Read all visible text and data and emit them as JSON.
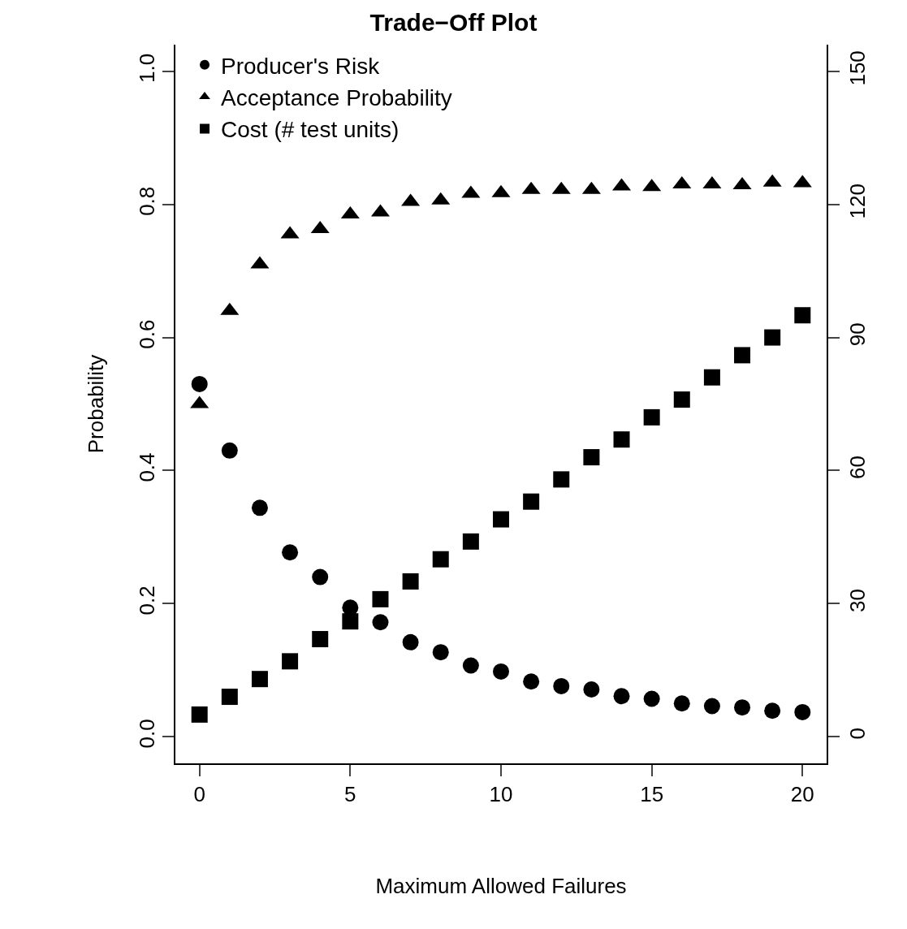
{
  "chart_data": {
    "type": "scatter",
    "title": "Trade−Off Plot",
    "xlabel": "Maximum Allowed Failures",
    "ylabel": "Probability",
    "x": [
      0,
      1,
      2,
      3,
      4,
      5,
      6,
      7,
      8,
      9,
      10,
      11,
      12,
      13,
      14,
      15,
      16,
      17,
      18,
      19,
      20
    ],
    "series": [
      {
        "name": "Producer's Risk",
        "color": "#000000",
        "marker": "circle",
        "values": [
          0.53,
          0.43,
          0.344,
          0.277,
          0.24,
          0.194,
          0.172,
          0.142,
          0.127,
          0.107,
          0.098,
          0.083,
          0.076,
          0.071,
          0.061,
          0.057,
          0.05,
          0.046,
          0.044,
          0.039,
          0.037
        ]
      },
      {
        "name": "Acceptance Probability",
        "color": "#000000",
        "marker": "triangle",
        "values": [
          0.5,
          0.64,
          0.71,
          0.755,
          0.763,
          0.785,
          0.788,
          0.804,
          0.806,
          0.816,
          0.817,
          0.822,
          0.822,
          0.822,
          0.827,
          0.826,
          0.83,
          0.83,
          0.829,
          0.833,
          0.832
        ]
      },
      {
        "name": "Cost (# test units)",
        "color": "#000000",
        "marker": "square",
        "axis": "y2",
        "values": [
          5,
          9,
          13,
          17,
          22,
          26,
          31,
          35,
          40,
          44,
          49,
          53,
          58,
          63,
          67,
          72,
          76,
          81,
          86,
          90,
          95
        ]
      }
    ],
    "xlim": [
      -0.8,
      20.8
    ],
    "xticks": [
      0,
      5,
      10,
      15,
      20
    ],
    "ylim": [
      -0.04,
      1.04
    ],
    "yticks": [
      {
        "value": 0,
        "label": "0.0"
      },
      0.2,
      0.4,
      0.6,
      0.8,
      {
        "value": 1,
        "label": "1.0"
      }
    ],
    "y2lim": [
      -6,
      156
    ],
    "y2ticks": [
      0,
      30,
      60,
      90,
      120,
      150
    ],
    "grid": false,
    "legend": "top left"
  }
}
